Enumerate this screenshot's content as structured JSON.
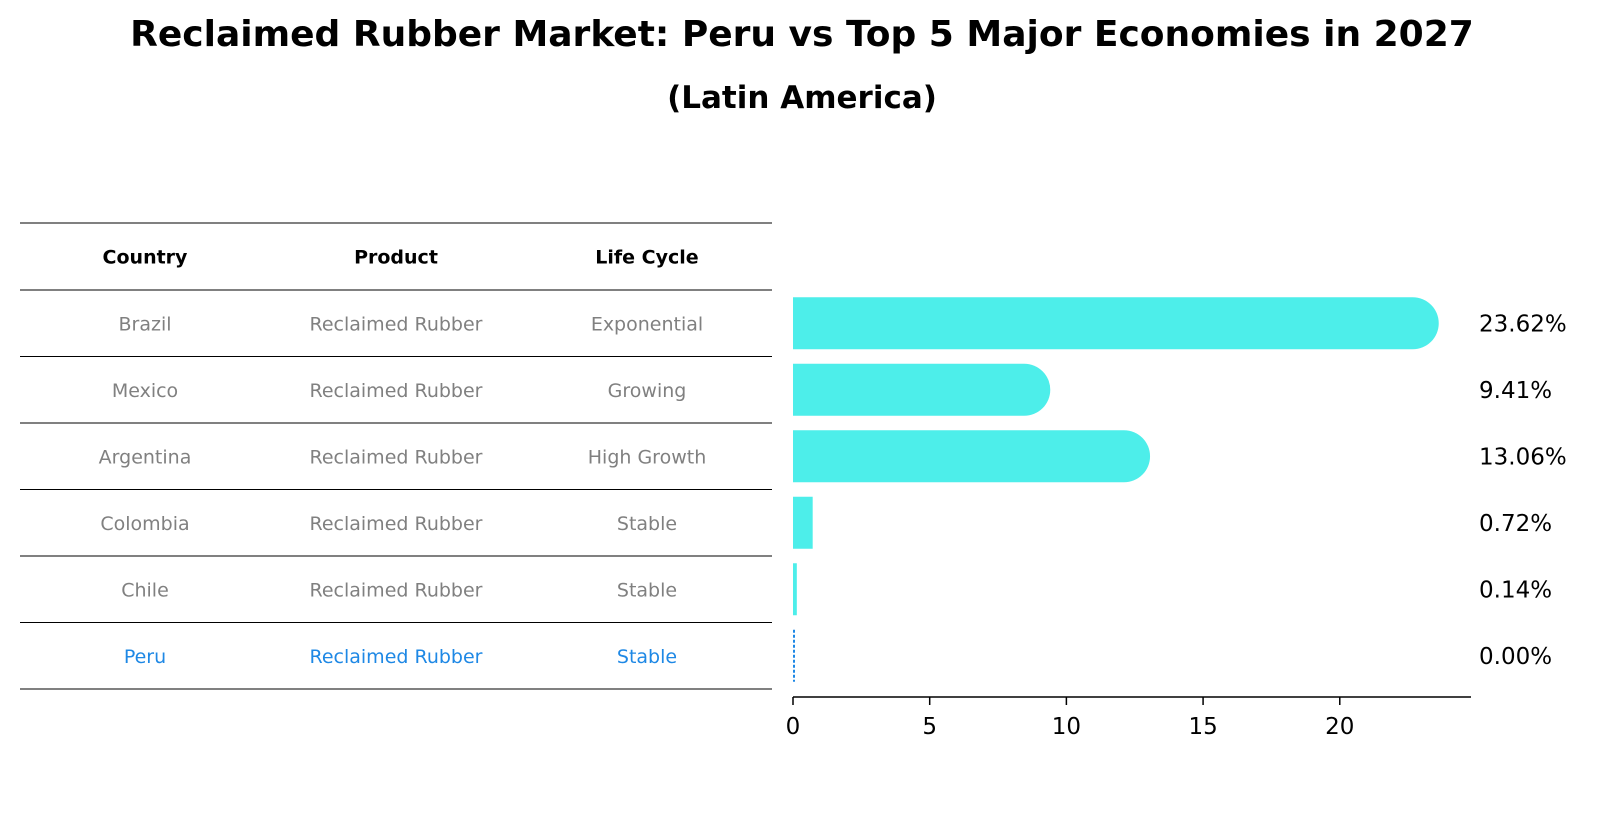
{
  "chart_data": {
    "type": "bar",
    "orientation": "horizontal",
    "title": "Reclaimed Rubber Market: Peru vs Top 5 Major Economies in 2027",
    "subtitle": "(Latin America)",
    "table": {
      "columns": [
        "Country",
        "Product",
        "Life Cycle"
      ],
      "rows": [
        [
          "Brazil",
          "Reclaimed Rubber",
          "Exponential"
        ],
        [
          "Mexico",
          "Reclaimed Rubber",
          "Growing"
        ],
        [
          "Argentina",
          "Reclaimed Rubber",
          "High Growth"
        ],
        [
          "Colombia",
          "Reclaimed Rubber",
          "Stable"
        ],
        [
          "Chile",
          "Reclaimed Rubber",
          "Stable"
        ],
        [
          "Peru",
          "Reclaimed Rubber",
          "Stable"
        ]
      ],
      "highlight_row": 5
    },
    "categories": [
      "Brazil",
      "Mexico",
      "Argentina",
      "Colombia",
      "Chile",
      "Peru"
    ],
    "values": [
      23.62,
      9.41,
      13.06,
      0.72,
      0.14,
      0.0
    ],
    "value_labels": [
      "23.62%",
      "9.41%",
      "13.06%",
      "0.72%",
      "0.14%",
      "0.00%"
    ],
    "xlim": [
      0,
      24.8
    ],
    "xticks": [
      0,
      5,
      10,
      15,
      20
    ],
    "grid": false,
    "legend": "none",
    "colors": {
      "bar": "#4DEEEA",
      "highlight": "#1E88E5",
      "table_text": "#808080",
      "header_text": "#000000"
    }
  }
}
